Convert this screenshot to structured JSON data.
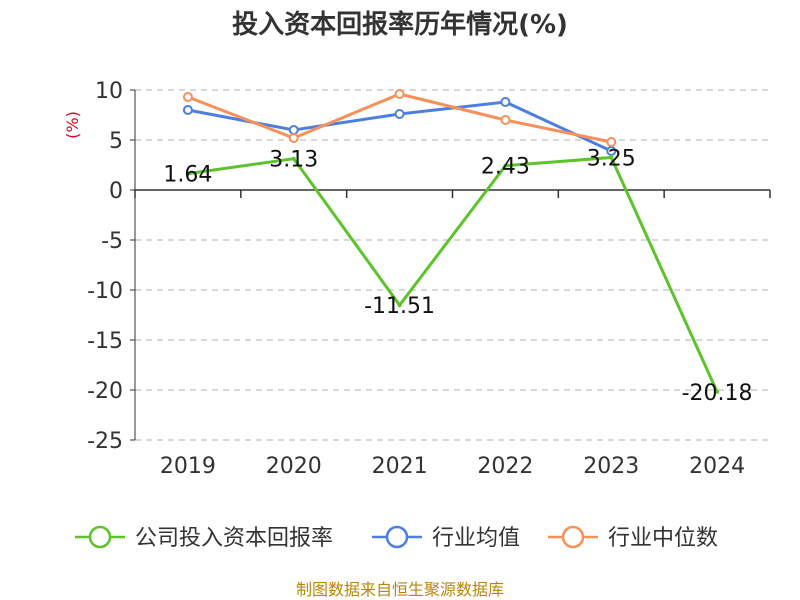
{
  "chart_data": {
    "type": "line",
    "title": "投入资本回报率历年情况(%)",
    "ylabel": "(%)",
    "xlabel": "",
    "categories": [
      "2019",
      "2020",
      "2021",
      "2022",
      "2023",
      "2024"
    ],
    "ylim": [
      -25,
      10
    ],
    "yticks": [
      10,
      5,
      0,
      -5,
      -10,
      -15,
      -20,
      -25
    ],
    "grid": true,
    "legend_position": "bottom",
    "series": [
      {
        "name": "公司投入资本回报率",
        "color": "#5cc32a",
        "values": [
          1.64,
          3.13,
          -11.51,
          2.43,
          3.25,
          -20.18
        ],
        "labels": [
          "1.64",
          "3.13",
          "-11.51",
          "2.43",
          "3.25",
          "-20.18"
        ]
      },
      {
        "name": "行业均值",
        "color": "#4d7fe0",
        "values": [
          8.0,
          6.0,
          7.6,
          8.8,
          3.9,
          null
        ]
      },
      {
        "name": "行业中位数",
        "color": "#f8905a",
        "values": [
          9.3,
          5.2,
          9.6,
          7.0,
          4.8,
          null
        ]
      }
    ]
  },
  "source": "制图数据来自恒生聚源数据库"
}
